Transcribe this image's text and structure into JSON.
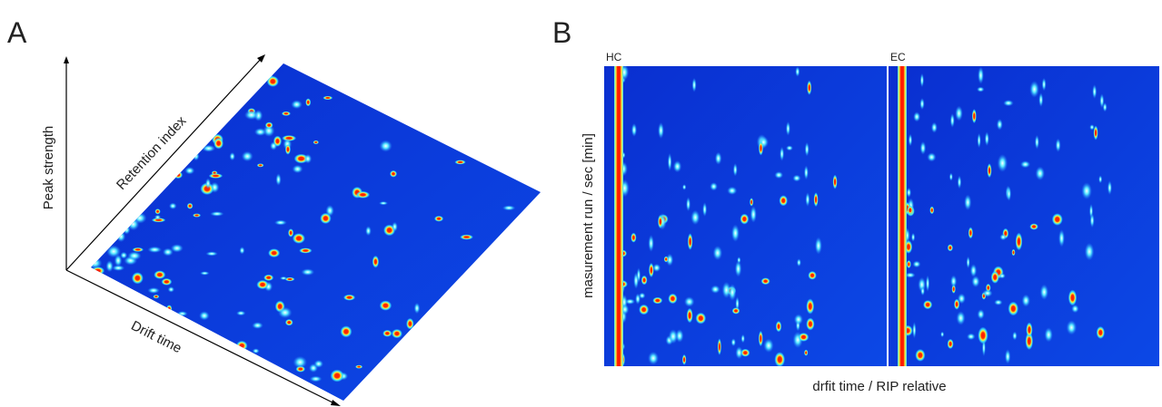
{
  "panel_a": {
    "label": "A",
    "axis_vertical": "Peak strength",
    "axis_depth": "Retention index",
    "axis_horizontal": "Drift time"
  },
  "panel_b": {
    "label": "B",
    "maps": [
      "HC",
      "EC"
    ],
    "y_label": "masurement run / sec [min]",
    "x_label": "drfit time / RIP relative"
  }
}
